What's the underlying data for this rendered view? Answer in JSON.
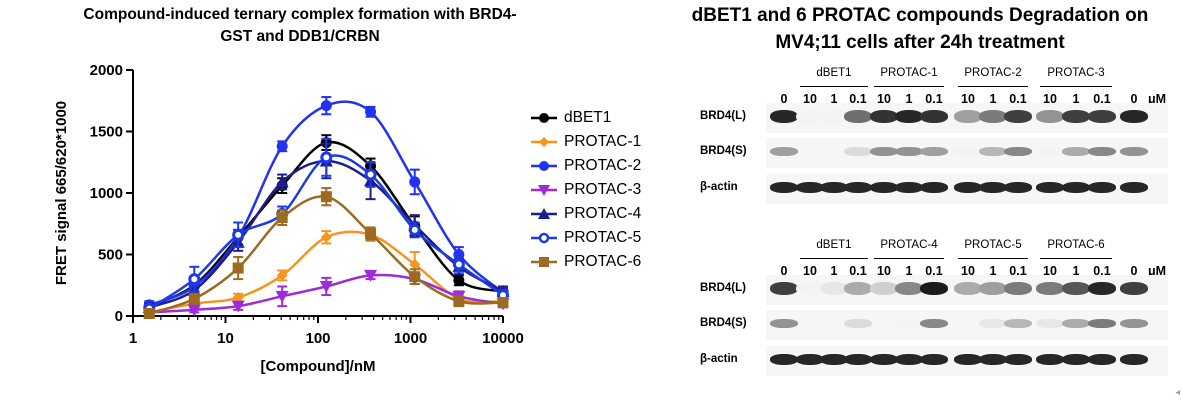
{
  "chart_data": {
    "type": "scatter",
    "title": "Compound-induced ternary complex formation with BRD4-GST and DDB1/CRBN",
    "xlabel": "[Compound]/nM",
    "ylabel": "FRET signal 665/620*1000",
    "xscale": "log",
    "xlim": [
      1,
      10000
    ],
    "ylim": [
      0,
      2000
    ],
    "xticks": [
      1,
      10,
      100,
      1000,
      10000
    ],
    "xtick_labels": [
      "1",
      "10",
      "100",
      "1000",
      "10000"
    ],
    "yticks": [
      0,
      500,
      1000,
      1500,
      2000
    ],
    "ytick_labels": [
      "0",
      "500",
      "1000",
      "1500",
      "2000"
    ],
    "grid": false,
    "legend_position": "right",
    "x": [
      1.5,
      4.6,
      13.7,
      41,
      123,
      370,
      1111,
      3333,
      10000
    ],
    "series": [
      {
        "name": "dBET1",
        "color": "#000000",
        "marker": "circle",
        "values": [
          80,
          250,
          640,
          1060,
          1410,
          1220,
          730,
          290,
          200
        ],
        "errors": [
          30,
          50,
          60,
          60,
          60,
          60,
          80,
          40,
          40
        ]
      },
      {
        "name": "PROTAC-1",
        "color": "#f7941d",
        "marker": "diamond",
        "values": [
          30,
          100,
          150,
          330,
          640,
          660,
          420,
          140,
          120
        ],
        "errors": [
          20,
          30,
          30,
          40,
          50,
          50,
          100,
          40,
          30
        ]
      },
      {
        "name": "PROTAC-2",
        "color": "#2132f0",
        "marker": "circle",
        "values": [
          90,
          240,
          640,
          1380,
          1710,
          1660,
          1090,
          500,
          190
        ],
        "errors": [
          30,
          50,
          60,
          40,
          70,
          40,
          100,
          60,
          40
        ]
      },
      {
        "name": "PROTAC-3",
        "color": "#9f2bd8",
        "marker": "triangle-down",
        "values": [
          30,
          50,
          80,
          160,
          240,
          330,
          300,
          160,
          100
        ],
        "errors": [
          20,
          20,
          30,
          80,
          70,
          30,
          40,
          40,
          30
        ]
      },
      {
        "name": "PROTAC-4",
        "color": "#1f1d8a",
        "marker": "triangle-up",
        "values": [
          70,
          210,
          600,
          1090,
          1260,
          1100,
          740,
          400,
          200
        ],
        "errors": [
          30,
          60,
          70,
          60,
          140,
          150,
          80,
          60,
          40
        ]
      },
      {
        "name": "PROTAC-5",
        "color": "#1d3ae8",
        "marker": "circle-open",
        "values": [
          60,
          300,
          660,
          830,
          1290,
          1150,
          700,
          420,
          170
        ],
        "errors": [
          30,
          100,
          100,
          60,
          150,
          100,
          60,
          60,
          40
        ]
      },
      {
        "name": "PROTAC-6",
        "color": "#9c6b22",
        "marker": "square",
        "values": [
          20,
          140,
          390,
          800,
          970,
          670,
          320,
          120,
          110
        ],
        "errors": [
          20,
          40,
          90,
          60,
          70,
          50,
          60,
          40,
          30
        ]
      }
    ]
  },
  "blot": {
    "title": "dBET1 and 6 PROTAC compounds Degradation on MV4;11 cells after 24h treatment",
    "panels": [
      {
        "groups": [
          "dBET1",
          "PROTAC-1",
          "PROTAC-2",
          "PROTAC-3"
        ],
        "doses": [
          "0",
          "10",
          "1",
          "0.1",
          "10",
          "1",
          "0.1",
          "10",
          "1",
          "0.1",
          "10",
          "1",
          "0.1",
          "0",
          "μM"
        ],
        "bands": [
          {
            "label": "BRD4(L)",
            "intensity": [
              0.9,
              0.05,
              0.05,
              0.6,
              0.85,
              0.9,
              0.85,
              0.4,
              0.55,
              0.8,
              0.45,
              0.8,
              0.8,
              0.9
            ]
          },
          {
            "label": "BRD4(S)",
            "intensity": [
              0.4,
              0,
              0,
              0.15,
              0.45,
              0.45,
              0.4,
              0.05,
              0.3,
              0.5,
              0.05,
              0.35,
              0.5,
              0.45
            ]
          },
          {
            "label": "β-actin",
            "intensity": [
              0.9,
              0.9,
              0.9,
              0.9,
              0.9,
              0.9,
              0.9,
              0.9,
              0.9,
              0.9,
              0.9,
              0.9,
              0.9,
              0.9
            ]
          }
        ]
      },
      {
        "groups": [
          "dBET1",
          "PROTAC-4",
          "PROTAC-5",
          "PROTAC-6"
        ],
        "doses": [
          "0",
          "10",
          "1",
          "0.1",
          "10",
          "1",
          "0.1",
          "10",
          "1",
          "0.1",
          "10",
          "1",
          "0.1",
          "0",
          "μM"
        ],
        "bands": [
          {
            "label": "BRD4(L)",
            "intensity": [
              0.8,
              0.05,
              0.1,
              0.35,
              0.2,
              0.5,
              0.95,
              0.35,
              0.4,
              0.55,
              0.55,
              0.7,
              0.9,
              0.8
            ]
          },
          {
            "label": "BRD4(S)",
            "intensity": [
              0.45,
              0,
              0,
              0.15,
              0,
              0.05,
              0.5,
              0,
              0.1,
              0.3,
              0.1,
              0.35,
              0.55,
              0.45
            ]
          },
          {
            "label": "β-actin",
            "intensity": [
              0.9,
              0.9,
              0.9,
              0.9,
              0.9,
              0.9,
              0.9,
              0.9,
              0.9,
              0.9,
              0.9,
              0.9,
              0.9,
              0.9
            ]
          }
        ]
      }
    ]
  }
}
